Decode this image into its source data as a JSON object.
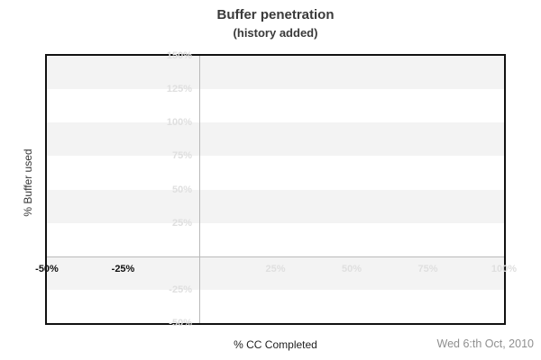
{
  "chart_data": {
    "type": "line",
    "title": "Buffer penetration",
    "subtitle": "(history added)",
    "xlabel": "% CC Completed",
    "ylabel": "% Buffer used",
    "date_note": "Wed 6:th Oct, 2010",
    "x_range": [
      -50,
      100
    ],
    "y_range": [
      -50,
      150
    ],
    "x_ticks": [
      {
        "value": -50,
        "label": "-50%",
        "emphasized": true
      },
      {
        "value": -25,
        "label": "-25%",
        "emphasized": true
      },
      {
        "value": 25,
        "label": "25%",
        "emphasized": false
      },
      {
        "value": 50,
        "label": "50%",
        "emphasized": false
      },
      {
        "value": 75,
        "label": "75%",
        "emphasized": false
      },
      {
        "value": 100,
        "label": "100%",
        "emphasized": false
      }
    ],
    "y_ticks": [
      {
        "value": 150,
        "label": "150%"
      },
      {
        "value": 125,
        "label": "125%"
      },
      {
        "value": 100,
        "label": "100%"
      },
      {
        "value": 75,
        "label": "75%"
      },
      {
        "value": 50,
        "label": "50%"
      },
      {
        "value": 25,
        "label": "25%"
      },
      {
        "value": -25,
        "label": "-25%"
      },
      {
        "value": -50,
        "label": "-50%"
      }
    ],
    "series": [],
    "grid": {
      "horizontal_bands": true,
      "band_step": 25,
      "zero_lines": true,
      "legend": "none"
    },
    "colors": {
      "band": "#f3f3f3",
      "zero_line": "#b9b9b9",
      "faint_label": "#dfdfdf",
      "dark_label": "#111111",
      "title": "#3a3a3a",
      "axis_label": "#222222",
      "date": "#8f8f8f",
      "plot_border": "#111111"
    }
  }
}
